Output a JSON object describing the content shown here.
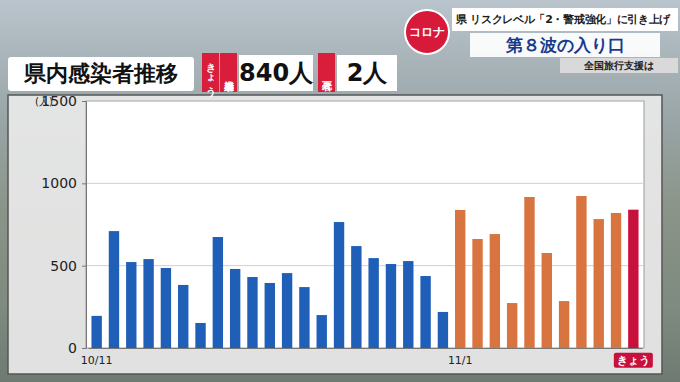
{
  "header": {
    "badge": "コロナ",
    "headline": "県 リスクレベル「2・警戒強化」に引き上げ",
    "subheadline": "第８波の入り口",
    "ticker": "全国旅行支援は"
  },
  "summary": {
    "today": "きょう",
    "cases_label": "感染者",
    "cases": "840人",
    "deaths_label": "死者",
    "deaths": "2人"
  },
  "chart_data": {
    "type": "bar",
    "title": "県内感染者推移",
    "ylabel": "(人)",
    "categories": [
      "10/11",
      null,
      null,
      null,
      null,
      null,
      null,
      null,
      null,
      null,
      null,
      null,
      null,
      null,
      null,
      null,
      null,
      null,
      null,
      null,
      null,
      "11/1",
      null,
      null,
      null,
      null,
      null,
      null,
      null,
      null,
      null,
      "きょう"
    ],
    "values": [
      195,
      710,
      522,
      540,
      486,
      383,
      152,
      674,
      480,
      431,
      395,
      455,
      370,
      200,
      765,
      619,
      546,
      510,
      528,
      437,
      219,
      838,
      662,
      692,
      273,
      917,
      577,
      285,
      923,
      783,
      820,
      840
    ],
    "colors": [
      "#1f5fb8",
      "#1f5fb8",
      "#1f5fb8",
      "#1f5fb8",
      "#1f5fb8",
      "#1f5fb8",
      "#1f5fb8",
      "#1f5fb8",
      "#1f5fb8",
      "#1f5fb8",
      "#1f5fb8",
      "#1f5fb8",
      "#1f5fb8",
      "#1f5fb8",
      "#1f5fb8",
      "#1f5fb8",
      "#1f5fb8",
      "#1f5fb8",
      "#1f5fb8",
      "#1f5fb8",
      "#1f5fb8",
      "#d8743f",
      "#d8743f",
      "#d8743f",
      "#d8743f",
      "#d8743f",
      "#d8743f",
      "#d8743f",
      "#d8743f",
      "#d8743f",
      "#d8743f",
      "#c8103c"
    ],
    "ylim": [
      0,
      1500
    ],
    "yticks": [
      0,
      500,
      1000,
      1500
    ],
    "grid": true
  }
}
